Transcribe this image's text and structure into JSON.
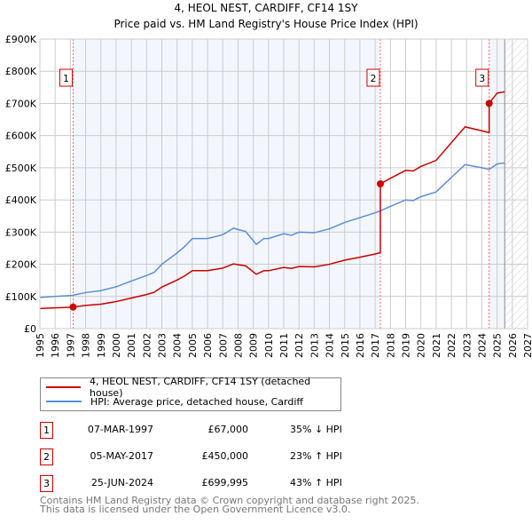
{
  "chart_data": {
    "type": "line",
    "title": "4, HEOL NEST, CARDIFF, CF14 1SY",
    "subtitle": "Price paid vs. HM Land Registry's House Price Index (HPI)",
    "xlim": [
      1995,
      2027
    ],
    "ylim": [
      0,
      900
    ],
    "y_unit": "£K",
    "yticks": [
      "£0",
      "£100K",
      "£200K",
      "£300K",
      "£400K",
      "£500K",
      "£600K",
      "£700K",
      "£800K",
      "£900K"
    ],
    "xticks": [
      "1995",
      "1996",
      "1997",
      "1998",
      "1999",
      "2000",
      "2001",
      "2002",
      "2003",
      "2004",
      "2005",
      "2006",
      "2007",
      "2008",
      "2009",
      "2010",
      "2011",
      "2012",
      "2013",
      "2014",
      "2015",
      "2016",
      "2017",
      "2018",
      "2019",
      "2020",
      "2021",
      "2022",
      "2023",
      "2024",
      "2025",
      "2026",
      "2027"
    ],
    "grid": true,
    "forecast_start": 2025.5,
    "series": [
      {
        "name": "4, HEOL NEST, CARDIFF, CF14 1SY (detached house)",
        "color": "#cc0000",
        "x": [
          1995,
          1996,
          1997,
          1997.18,
          1998,
          1999,
          2000,
          2001,
          2002,
          2002.5,
          2003,
          2004,
          2004.5,
          2005,
          2006,
          2007,
          2007.7,
          2008.5,
          2009.2,
          2009.7,
          2010,
          2011,
          2011.5,
          2012,
          2013,
          2014,
          2015,
          2016,
          2017,
          2017.34,
          2017.34,
          2018,
          2019,
          2019.5,
          2020,
          2021,
          2022,
          2022.9,
          2024,
          2024.48,
          2024.48,
          2025,
          2025.5
        ],
        "y": [
          62.5,
          64.4,
          66.3,
          67,
          72,
          76,
          84,
          95,
          106,
          113,
          129,
          151,
          164,
          180,
          180,
          188,
          201,
          195,
          169,
          180,
          180,
          190,
          187,
          193,
          192,
          200,
          213,
          222,
          232,
          236,
          450,
          467,
          492,
          490,
          504,
          523,
          578,
          627,
          615,
          609,
          700,
          732,
          736
        ]
      },
      {
        "name": "HPI: Average price, detached house, Cardiff",
        "color": "#5b8fd4",
        "x": [
          1995,
          1996,
          1997,
          1997.18,
          1998,
          1999,
          2000,
          2001,
          2002,
          2002.5,
          2003,
          2004,
          2004.5,
          2005,
          2006,
          2007,
          2007.7,
          2008.5,
          2009.2,
          2009.7,
          2010,
          2011,
          2011.5,
          2012,
          2013,
          2014,
          2015,
          2016,
          2017,
          2017.34,
          2018,
          2019,
          2019.5,
          2020,
          2021,
          2022,
          2022.9,
          2024,
          2024.48,
          2025,
          2025.5
        ],
        "y": [
          97,
          100,
          103,
          104,
          112,
          118,
          130,
          148,
          165,
          175,
          200,
          235,
          255,
          280,
          280,
          292,
          312,
          302,
          262,
          280,
          280,
          295,
          290,
          300,
          298,
          310,
          330,
          345,
          360,
          366,
          380,
          400,
          398,
          410,
          425,
          470,
          510,
          500,
          495,
          512,
          515
        ]
      }
    ],
    "sales": [
      {
        "label": "1",
        "x": 1997.18,
        "y": 67,
        "date": "07-MAR-1997",
        "price": "£67,000",
        "hpi": "35% ↓ HPI"
      },
      {
        "label": "2",
        "x": 2017.34,
        "y": 450,
        "date": "05-MAY-2017",
        "price": "£450,000",
        "hpi": "23% ↑ HPI"
      },
      {
        "label": "3",
        "x": 2024.48,
        "y": 699.995,
        "date": "25-JUN-2024",
        "price": "£699,995",
        "hpi": "43% ↑ HPI"
      }
    ]
  },
  "footer": {
    "line1": "Contains HM Land Registry data © Crown copyright and database right 2025.",
    "line2": "This data is licensed under the Open Government Licence v3.0."
  }
}
